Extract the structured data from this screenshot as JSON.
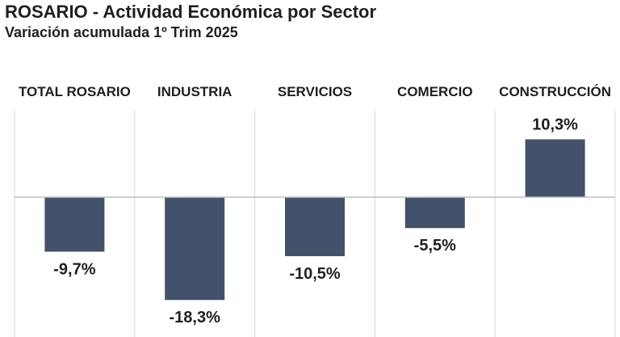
{
  "title": "ROSARIO  - Actividad Económica por Sector",
  "subtitle": "Variación acumulada 1º Trim 2025",
  "chart_data": {
    "type": "bar",
    "categories": [
      "TOTAL ROSARIO",
      "INDUSTRIA",
      "SERVICIOS",
      "COMERCIO",
      "CONSTRUCCIÓN"
    ],
    "values": [
      -9.7,
      -18.3,
      -10.5,
      -5.5,
      10.3
    ],
    "value_labels": [
      "-9,7%",
      "-18,3%",
      "-10,5%",
      "-5,5%",
      "10,3%"
    ],
    "ylim": [
      -20,
      14
    ],
    "bar_color": "#44516a",
    "gridlines": "vertical separators between categories",
    "legend": "none"
  }
}
